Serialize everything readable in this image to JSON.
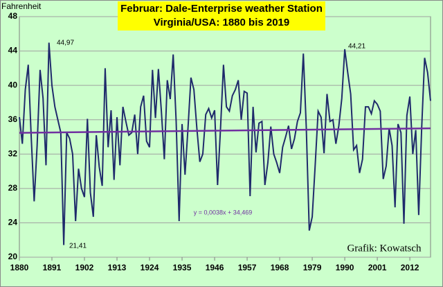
{
  "chart_data": {
    "type": "line",
    "title": "Februar: Dale-Enterprise weather Station",
    "subtitle": "Virginia/USA: 1880 bis 2019",
    "y_label": "Fahrenheit",
    "annotations": [
      "44,97",
      "21,41",
      "44,21"
    ],
    "trend_label": "y = 0,0038x + 34,469",
    "credit": "Grafik: Kowatsch",
    "xlim": [
      1880,
      2019
    ],
    "xticks": [
      1880,
      1891,
      1902,
      1913,
      1924,
      1935,
      1946,
      1957,
      1968,
      1979,
      1990,
      2001,
      2012
    ],
    "ylim": [
      20,
      48
    ],
    "yticks": [
      20,
      24,
      28,
      32,
      36,
      40,
      44,
      48
    ],
    "grid": true,
    "x": [
      1880,
      1881,
      1882,
      1883,
      1884,
      1885,
      1886,
      1887,
      1888,
      1889,
      1890,
      1891,
      1892,
      1893,
      1894,
      1895,
      1896,
      1897,
      1898,
      1899,
      1900,
      1901,
      1902,
      1903,
      1904,
      1905,
      1906,
      1907,
      1908,
      1909,
      1910,
      1911,
      1912,
      1913,
      1914,
      1915,
      1916,
      1917,
      1918,
      1919,
      1920,
      1921,
      1922,
      1923,
      1924,
      1925,
      1926,
      1927,
      1928,
      1929,
      1930,
      1931,
      1932,
      1933,
      1934,
      1935,
      1936,
      1937,
      1938,
      1939,
      1940,
      1941,
      1942,
      1943,
      1944,
      1945,
      1946,
      1947,
      1948,
      1949,
      1950,
      1951,
      1952,
      1953,
      1954,
      1955,
      1956,
      1957,
      1958,
      1959,
      1960,
      1961,
      1962,
      1963,
      1964,
      1965,
      1966,
      1967,
      1968,
      1969,
      1970,
      1971,
      1972,
      1973,
      1974,
      1975,
      1976,
      1977,
      1978,
      1979,
      1980,
      1981,
      1982,
      1983,
      1984,
      1985,
      1986,
      1987,
      1988,
      1989,
      1990,
      1991,
      1992,
      1993,
      1994,
      1995,
      1996,
      1997,
      1998,
      1999,
      2000,
      2001,
      2002,
      2003,
      2004,
      2005,
      2006,
      2007,
      2008,
      2009,
      2010,
      2011,
      2012,
      2013,
      2014,
      2015,
      2016,
      2017,
      2018,
      2019
    ],
    "series": [
      {
        "color": "#1f2a6b",
        "values": [
          36.3,
          33.2,
          39.5,
          42.4,
          34,
          26.5,
          33,
          41.8,
          38.5,
          30.7,
          44.97,
          40,
          37.5,
          36,
          34.5,
          21.41,
          34.5,
          33.8,
          32,
          24.2,
          30.3,
          28,
          27,
          36.1,
          27.5,
          24.7,
          34.2,
          30.5,
          28.3,
          42,
          32.8,
          37.1,
          29,
          36.3,
          30.7,
          37.5,
          35.8,
          34.2,
          34.5,
          36.6,
          32,
          37.5,
          38.8,
          33.5,
          32.8,
          41.8,
          36.2,
          41.9,
          37,
          31.4,
          40.6,
          38.4,
          43.6,
          35.8,
          24.2,
          35.5,
          29.6,
          35,
          40.9,
          39.5,
          35,
          31.1,
          32,
          36.6,
          37.3,
          36.2,
          37.1,
          28.4,
          35,
          42.4,
          37.5,
          37,
          38.8,
          39.5,
          40.6,
          36,
          39.3,
          39.1,
          27.1,
          37.5,
          32.2,
          35.6,
          35.8,
          28.4,
          31,
          35.2,
          32,
          31,
          29.8,
          32.8,
          34,
          35.3,
          32.6,
          33.8,
          35.8,
          36.8,
          43.7,
          35,
          23.1,
          24.7,
          30.7,
          37,
          36.3,
          32.1,
          39,
          35.8,
          36,
          33.2,
          35.3,
          38.5,
          44.21,
          41.5,
          39,
          32.5,
          33,
          29.8,
          31.4,
          37.5,
          37.5,
          36.7,
          38.2,
          37.8,
          37,
          29.1,
          30.6,
          35,
          33,
          25.8,
          35.5,
          34.5,
          23.9,
          36.5,
          38.7,
          32,
          34.8,
          24.9,
          35,
          43.2,
          41.5,
          38.2
        ]
      }
    ],
    "trendline": {
      "color": "#7030a0",
      "values": [
        34.473,
        35.001
      ]
    }
  }
}
